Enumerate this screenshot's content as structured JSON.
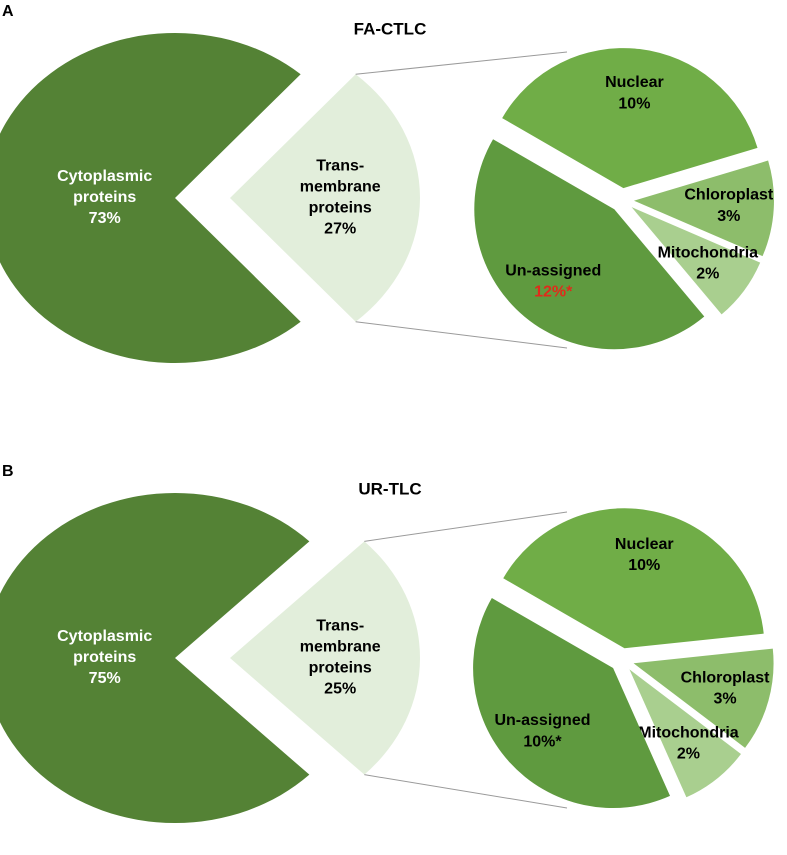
{
  "chart_data": [
    {
      "type": "pie",
      "panel": "A",
      "title": "FA-CTLC",
      "categories": [
        "Cytoplasmic\nproteins",
        "Trans-\nmembrane\nproteins"
      ],
      "values": [
        73,
        27
      ],
      "value_labels": [
        "73%",
        "27%"
      ],
      "colors": [
        "#548235",
        "#e2eedb"
      ],
      "breakdown": {
        "categories": [
          "Nuclear",
          "Chloroplast",
          "Mitochondria",
          "Un-assigned"
        ],
        "values": [
          10,
          3,
          2,
          12
        ],
        "value_labels": [
          "10%",
          "3%",
          "2%",
          "12%*"
        ],
        "colors": [
          "#70ad47",
          "#8dbd6b",
          "#a9cf8f",
          "#5f9a3f"
        ],
        "value_label_colors": [
          "#000000",
          "#000000",
          "#000000",
          "#e02b1b"
        ]
      }
    },
    {
      "type": "pie",
      "panel": "B",
      "title": "UR-TLC",
      "categories": [
        "Cytoplasmic\nproteins",
        "Trans-\nmembrane\nproteins"
      ],
      "values": [
        75,
        25
      ],
      "value_labels": [
        "75%",
        "25%"
      ],
      "colors": [
        "#548235",
        "#e2eedb"
      ],
      "breakdown": {
        "categories": [
          "Nuclear",
          "Chloroplast",
          "Mitochondria",
          "Un-assigned"
        ],
        "values": [
          10,
          3,
          2,
          10
        ],
        "value_labels": [
          "10%",
          "3%",
          "2%",
          "10%*"
        ],
        "colors": [
          "#70ad47",
          "#8dbd6b",
          "#a9cf8f",
          "#5f9a3f"
        ],
        "value_label_colors": [
          "#000000",
          "#000000",
          "#000000",
          "#000000"
        ]
      }
    }
  ]
}
